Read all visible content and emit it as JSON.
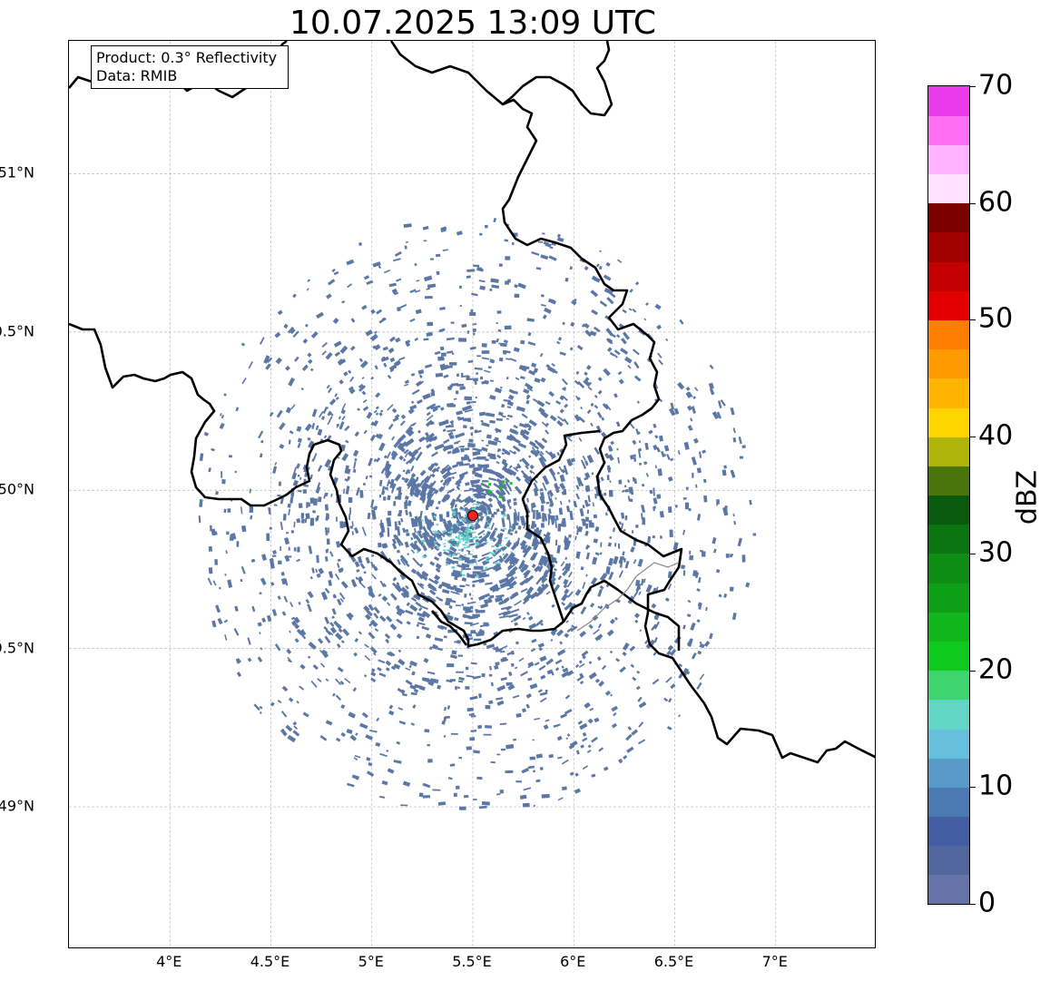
{
  "title": "10.07.2025 13:09 UTC",
  "info": {
    "product": "Product: 0.3° Reflectivity",
    "source": "Data: RMIB"
  },
  "map_extent": {
    "lon_min": 3.5,
    "lon_max": 7.5,
    "lat_min": 48.55,
    "lat_max": 51.42
  },
  "lat_ticks": [
    {
      "value": 51.0,
      "label": "51°N"
    },
    {
      "value": 50.5,
      "label": "50.5°N"
    },
    {
      "value": 50.0,
      "label": "50°N"
    },
    {
      "value": 49.5,
      "label": "49.5°N"
    },
    {
      "value": 49.0,
      "label": "49°N"
    }
  ],
  "lon_ticks": [
    {
      "value": 4.0,
      "label": "4°E"
    },
    {
      "value": 4.5,
      "label": "4.5°E"
    },
    {
      "value": 5.0,
      "label": "5°E"
    },
    {
      "value": 5.5,
      "label": "5.5°E"
    },
    {
      "value": 6.0,
      "label": "6°E"
    },
    {
      "value": 6.5,
      "label": "6.5°E"
    },
    {
      "value": 7.0,
      "label": "7°E"
    }
  ],
  "radar_site": {
    "lon": 5.5,
    "lat": 49.92,
    "color": "#ff2020"
  },
  "echo_color": "#5b77a5",
  "colorbar": {
    "unit": "dBZ",
    "min": 0,
    "max": 70,
    "step": 2.5,
    "tick_labels": [
      "0",
      "10",
      "20",
      "30",
      "40",
      "50",
      "60",
      "70"
    ],
    "tick_values": [
      0,
      10,
      20,
      30,
      40,
      50,
      60,
      70
    ],
    "colors": [
      "#6673a8",
      "#52659d",
      "#425da2",
      "#4b7ab2",
      "#5a9ac8",
      "#66bfdc",
      "#62d6c6",
      "#3ed46e",
      "#10c91d",
      "#10b61a",
      "#0e9f16",
      "#0e8c14",
      "#0a7511",
      "#0a5a0d",
      "#4a750a",
      "#afb40a",
      "#ffd500",
      "#ffb400",
      "#ff9a00",
      "#ff7d00",
      "#e30000",
      "#c40000",
      "#a00000",
      "#7b0000",
      "#ffe0ff",
      "#ffb2ff",
      "#ff6ef5",
      "#e93be9"
    ]
  }
}
